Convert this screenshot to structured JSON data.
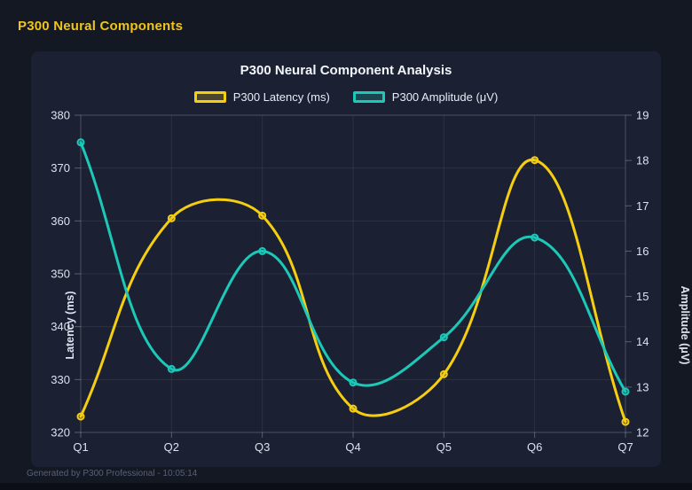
{
  "header": {
    "title": "P300 Neural Components"
  },
  "footer": {
    "text": "Generated by P300 Professional - 10:05:14"
  },
  "colors": {
    "background": "#141823",
    "panel": "#1b2032",
    "latency_line": "#f5ce12",
    "amplitude_line": "#1cc8b8",
    "tick_text": "#dde2ee",
    "grid": "rgba(255,255,255,0.08)"
  },
  "chart_data": {
    "type": "line",
    "title": "P300 Neural Component Analysis",
    "categories": [
      "Q1",
      "Q2",
      "Q3",
      "Q4",
      "Q5",
      "Q6",
      "Q7"
    ],
    "series": [
      {
        "name": "P300 Latency (ms)",
        "axis": "left",
        "color": "#f5ce12",
        "values": [
          323,
          360.5,
          361,
          324.5,
          331,
          371.5,
          322
        ]
      },
      {
        "name": "P300 Amplitude (μV)",
        "axis": "right",
        "color": "#1cc8b8",
        "values": [
          18.4,
          13.4,
          16.0,
          13.1,
          14.1,
          16.3,
          12.9
        ]
      }
    ],
    "axes": {
      "left": {
        "label": "Latency (ms)",
        "min": 320,
        "max": 380,
        "step": 10
      },
      "right": {
        "label": "Amplitude (μV)",
        "min": 12,
        "max": 19,
        "step": 1
      }
    },
    "legend_position": "top",
    "grid": true,
    "line_tension": 0.4
  }
}
